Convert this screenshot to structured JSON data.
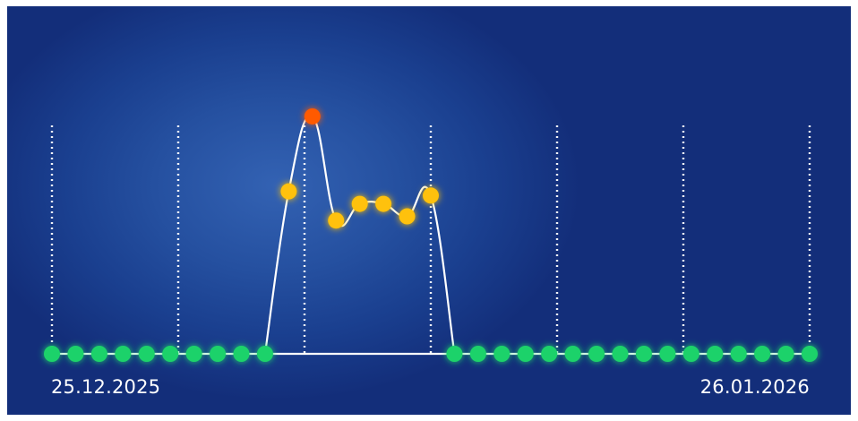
{
  "labels": {
    "start": "25.12.2025",
    "end": "26.01.2026"
  },
  "colors": {
    "normal": "#1fd26a",
    "elevated": "#ffc107",
    "peak": "#ff5a00",
    "line": "#ffffff",
    "grid": "#ffffff"
  },
  "chart_data": {
    "type": "line",
    "x_range": [
      "2025-12-25",
      "2026-01-26"
    ],
    "vertical_grid_lines": 7,
    "grid_style": "dotted",
    "baseline_value": 0,
    "ylim": [
      0,
      6
    ],
    "points": [
      {
        "x": "2025-12-25",
        "y": 0,
        "level": "normal"
      },
      {
        "x": "2025-12-26",
        "y": 0,
        "level": "normal"
      },
      {
        "x": "2025-12-27",
        "y": 0,
        "level": "normal"
      },
      {
        "x": "2025-12-28",
        "y": 0,
        "level": "normal"
      },
      {
        "x": "2025-12-29",
        "y": 0,
        "level": "normal"
      },
      {
        "x": "2025-12-30",
        "y": 0,
        "level": "normal"
      },
      {
        "x": "2025-12-31",
        "y": 0,
        "level": "normal"
      },
      {
        "x": "2026-01-01",
        "y": 0,
        "level": "normal"
      },
      {
        "x": "2026-01-02",
        "y": 0,
        "level": "normal"
      },
      {
        "x": "2026-01-03",
        "y": 0,
        "level": "normal"
      },
      {
        "x": "2026-01-04",
        "y": 3.9,
        "level": "elevated"
      },
      {
        "x": "2026-01-05",
        "y": 5.7,
        "level": "peak"
      },
      {
        "x": "2026-01-06",
        "y": 3.2,
        "level": "elevated"
      },
      {
        "x": "2026-01-07",
        "y": 3.6,
        "level": "elevated"
      },
      {
        "x": "2026-01-08",
        "y": 3.6,
        "level": "elevated"
      },
      {
        "x": "2026-01-09",
        "y": 3.3,
        "level": "elevated"
      },
      {
        "x": "2026-01-10",
        "y": 3.8,
        "level": "elevated"
      },
      {
        "x": "2026-01-11",
        "y": 0,
        "level": "normal"
      },
      {
        "x": "2026-01-12",
        "y": 0,
        "level": "normal"
      },
      {
        "x": "2026-01-13",
        "y": 0,
        "level": "normal"
      },
      {
        "x": "2026-01-14",
        "y": 0,
        "level": "normal"
      },
      {
        "x": "2026-01-15",
        "y": 0,
        "level": "normal"
      },
      {
        "x": "2026-01-16",
        "y": 0,
        "level": "normal"
      },
      {
        "x": "2026-01-17",
        "y": 0,
        "level": "normal"
      },
      {
        "x": "2026-01-18",
        "y": 0,
        "level": "normal"
      },
      {
        "x": "2026-01-19",
        "y": 0,
        "level": "normal"
      },
      {
        "x": "2026-01-20",
        "y": 0,
        "level": "normal"
      },
      {
        "x": "2026-01-21",
        "y": 0,
        "level": "normal"
      },
      {
        "x": "2026-01-22",
        "y": 0,
        "level": "normal"
      },
      {
        "x": "2026-01-23",
        "y": 0,
        "level": "normal"
      },
      {
        "x": "2026-01-24",
        "y": 0,
        "level": "normal"
      },
      {
        "x": "2026-01-25",
        "y": 0,
        "level": "normal"
      },
      {
        "x": "2026-01-26",
        "y": 0,
        "level": "normal"
      }
    ]
  }
}
